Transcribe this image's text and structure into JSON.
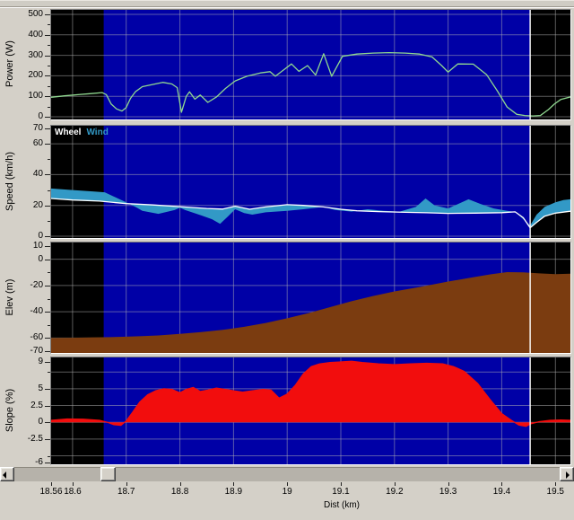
{
  "colors": {
    "window_bg": "#d4d0c8",
    "plot_bg_active": "#0000a6",
    "plot_bg_outside": "#000000",
    "grid": "#b4b4b4",
    "boundary_line": "#ffffff",
    "power_line": "#90d890",
    "wheel_line": "#ffffff",
    "wind_fill": "#3299c6",
    "elev_fill": "#7b3c10",
    "slope_fill": "#f20d0d",
    "text": "#000000"
  },
  "region": {
    "active_start": 18.658,
    "active_end": 19.453
  },
  "x_axis": {
    "label": "Dist (km)",
    "min": 18.56,
    "max": 19.528,
    "ticks": [
      {
        "v": 18.56,
        "label": "18.56"
      },
      {
        "v": 18.6,
        "label": "18.6"
      },
      {
        "v": 18.7,
        "label": "18.7"
      },
      {
        "v": 18.8,
        "label": "18.8"
      },
      {
        "v": 18.9,
        "label": "18.9"
      },
      {
        "v": 19.0,
        "label": "19"
      },
      {
        "v": 19.1,
        "label": "19.1"
      },
      {
        "v": 19.2,
        "label": "19.2"
      },
      {
        "v": 19.3,
        "label": "19.3"
      },
      {
        "v": 19.4,
        "label": "19.4"
      },
      {
        "v": 19.5,
        "label": "19.5"
      }
    ],
    "gridlines": [
      18.6,
      18.7,
      18.8,
      18.9,
      19.0,
      19.1,
      19.2,
      19.3,
      19.4,
      19.5
    ]
  },
  "scrollbar": {
    "thumb_pos": 112,
    "thumb_width": 17
  },
  "chart_data": [
    {
      "id": "power",
      "type": "line",
      "ylabel": "Power (W)",
      "ylim": [
        0,
        500
      ],
      "yticks": [
        {
          "v": 500,
          "label": "500"
        },
        {
          "v": 400,
          "label": "400"
        },
        {
          "v": 300,
          "label": "300"
        },
        {
          "v": 200,
          "label": "200"
        },
        {
          "v": 100,
          "label": "100"
        },
        {
          "v": 0,
          "label": "0"
        }
      ],
      "yticks_minor": [
        450,
        350,
        250,
        150,
        50
      ],
      "ygrid": [
        0,
        100,
        200,
        300,
        400,
        500
      ],
      "series": [
        {
          "name": "Power",
          "type": "line",
          "color": "#90d890",
          "width": 1.3,
          "points": [
            [
              18.56,
              95
            ],
            [
              18.585,
              102
            ],
            [
              18.61,
              108
            ],
            [
              18.635,
              113
            ],
            [
              18.655,
              118
            ],
            [
              18.663,
              108
            ],
            [
              18.672,
              62
            ],
            [
              18.682,
              38
            ],
            [
              18.692,
              28
            ],
            [
              18.7,
              45
            ],
            [
              18.708,
              90
            ],
            [
              18.717,
              122
            ],
            [
              18.73,
              147
            ],
            [
              18.75,
              158
            ],
            [
              18.768,
              168
            ],
            [
              18.785,
              160
            ],
            [
              18.795,
              142
            ],
            [
              18.803,
              22
            ],
            [
              18.812,
              100
            ],
            [
              18.818,
              122
            ],
            [
              18.828,
              86
            ],
            [
              18.838,
              106
            ],
            [
              18.852,
              70
            ],
            [
              18.868,
              96
            ],
            [
              18.885,
              138
            ],
            [
              18.903,
              175
            ],
            [
              18.925,
              198
            ],
            [
              18.95,
              214
            ],
            [
              18.968,
              220
            ],
            [
              18.978,
              198
            ],
            [
              18.995,
              232
            ],
            [
              19.008,
              258
            ],
            [
              19.022,
              222
            ],
            [
              19.038,
              250
            ],
            [
              19.053,
              204
            ],
            [
              19.068,
              308
            ],
            [
              19.083,
              198
            ],
            [
              19.103,
              295
            ],
            [
              19.13,
              306
            ],
            [
              19.16,
              311
            ],
            [
              19.19,
              313
            ],
            [
              19.22,
              311
            ],
            [
              19.247,
              306
            ],
            [
              19.27,
              292
            ],
            [
              19.288,
              250
            ],
            [
              19.3,
              218
            ],
            [
              19.318,
              258
            ],
            [
              19.347,
              257
            ],
            [
              19.372,
              205
            ],
            [
              19.392,
              125
            ],
            [
              19.41,
              48
            ],
            [
              19.428,
              12
            ],
            [
              19.443,
              6
            ],
            [
              19.458,
              4
            ],
            [
              19.472,
              6
            ],
            [
              19.487,
              35
            ],
            [
              19.498,
              62
            ],
            [
              19.51,
              84
            ],
            [
              19.528,
              97
            ]
          ]
        }
      ]
    },
    {
      "id": "speed",
      "type": "line",
      "ylabel": "Speed (km/h)",
      "ylim": [
        0,
        70
      ],
      "yticks": [
        {
          "v": 70,
          "label": "70"
        },
        {
          "v": 60,
          "label": "60"
        },
        {
          "v": 40,
          "label": "40"
        },
        {
          "v": 20,
          "label": "20"
        },
        {
          "v": 0,
          "label": "0"
        }
      ],
      "yticks_minor": [
        50,
        30,
        10
      ],
      "ygrid": [
        0,
        20,
        40,
        60
      ],
      "legend": [
        {
          "label": "Wheel",
          "color": "#ffffff"
        },
        {
          "label": "Wind",
          "color": "#3299c6"
        }
      ],
      "series": [
        {
          "name": "Wind",
          "type": "band",
          "fill": "#3299c6",
          "upper": [
            [
              18.56,
              31
            ],
            [
              18.6,
              30
            ],
            [
              18.64,
              29
            ],
            [
              18.66,
              28.5
            ],
            [
              18.7,
              22
            ],
            [
              18.72,
              18.5
            ],
            [
              18.73,
              16.5
            ],
            [
              18.76,
              14.5
            ],
            [
              18.79,
              17
            ],
            [
              18.8,
              18.5
            ],
            [
              18.81,
              17
            ],
            [
              18.84,
              13.5
            ],
            [
              18.86,
              11
            ],
            [
              18.875,
              8
            ],
            [
              18.89,
              13
            ],
            [
              18.903,
              17.5
            ],
            [
              18.92,
              15
            ],
            [
              18.935,
              14
            ],
            [
              18.96,
              15.5
            ],
            [
              19.0,
              16.5
            ],
            [
              19.03,
              17.5
            ],
            [
              19.067,
              19
            ],
            [
              19.09,
              17
            ],
            [
              19.12,
              16
            ],
            [
              19.15,
              17.5
            ],
            [
              19.18,
              16.5
            ],
            [
              19.21,
              16
            ],
            [
              19.24,
              19
            ],
            [
              19.258,
              24.5
            ],
            [
              19.275,
              20
            ],
            [
              19.3,
              18
            ],
            [
              19.338,
              24
            ],
            [
              19.36,
              21
            ],
            [
              19.385,
              18
            ],
            [
              19.41,
              16.5
            ],
            [
              19.425,
              15.8
            ],
            [
              19.44,
              11
            ],
            [
              19.453,
              7
            ],
            [
              19.465,
              14
            ],
            [
              19.48,
              19
            ],
            [
              19.5,
              22
            ],
            [
              19.515,
              23.5
            ],
            [
              19.528,
              24
            ]
          ],
          "lower_ref": "Wheel"
        },
        {
          "name": "Wheel",
          "type": "line",
          "color": "#ffffff",
          "width": 1.3,
          "points": [
            [
              18.56,
              24.5
            ],
            [
              18.6,
              23.5
            ],
            [
              18.65,
              22.8
            ],
            [
              18.7,
              21.2
            ],
            [
              18.75,
              20.3
            ],
            [
              18.8,
              19.2
            ],
            [
              18.85,
              18
            ],
            [
              18.88,
              17.6
            ],
            [
              18.903,
              19.5
            ],
            [
              18.93,
              17.5
            ],
            [
              18.96,
              19
            ],
            [
              19.0,
              20.5
            ],
            [
              19.03,
              20
            ],
            [
              19.067,
              19
            ],
            [
              19.1,
              17.5
            ],
            [
              19.13,
              16.5
            ],
            [
              19.17,
              16
            ],
            [
              19.22,
              15.5
            ],
            [
              19.26,
              15.2
            ],
            [
              19.3,
              14.8
            ],
            [
              19.35,
              15
            ],
            [
              19.4,
              15.3
            ],
            [
              19.425,
              15.8
            ],
            [
              19.44,
              12
            ],
            [
              19.453,
              5.5
            ],
            [
              19.465,
              9
            ],
            [
              19.48,
              13
            ],
            [
              19.5,
              15
            ],
            [
              19.528,
              16.2
            ]
          ]
        }
      ]
    },
    {
      "id": "elev",
      "type": "area",
      "ylabel": "Elev (m)",
      "ylim": [
        -70,
        10
      ],
      "yticks": [
        {
          "v": 10,
          "label": "10"
        },
        {
          "v": 0,
          "label": "0"
        },
        {
          "v": -20,
          "label": "-20"
        },
        {
          "v": -40,
          "label": "-40"
        },
        {
          "v": -60,
          "label": "-60"
        },
        {
          "v": -70,
          "label": "-70"
        }
      ],
      "yticks_minor": [
        -10,
        -30,
        -50
      ],
      "ygrid": [
        0,
        -20,
        -40,
        -60
      ],
      "series": [
        {
          "name": "Elevation",
          "type": "area",
          "fill": "#7b3c10",
          "baseline": "bottom",
          "points": [
            [
              18.56,
              -60
            ],
            [
              18.6,
              -59.8
            ],
            [
              18.64,
              -59.5
            ],
            [
              18.67,
              -59.3
            ],
            [
              18.7,
              -59
            ],
            [
              18.73,
              -58.5
            ],
            [
              18.76,
              -58
            ],
            [
              18.8,
              -56.8
            ],
            [
              18.84,
              -55.5
            ],
            [
              18.88,
              -53.8
            ],
            [
              18.92,
              -51.5
            ],
            [
              18.96,
              -48.5
            ],
            [
              19.0,
              -45
            ],
            [
              19.04,
              -41
            ],
            [
              19.08,
              -36.5
            ],
            [
              19.12,
              -32
            ],
            [
              19.16,
              -28
            ],
            [
              19.2,
              -24.5
            ],
            [
              19.25,
              -21
            ],
            [
              19.3,
              -17
            ],
            [
              19.35,
              -13.5
            ],
            [
              19.38,
              -11.5
            ],
            [
              19.41,
              -9.8
            ],
            [
              19.44,
              -10
            ],
            [
              19.47,
              -10.8
            ],
            [
              19.5,
              -11.3
            ],
            [
              19.528,
              -11
            ]
          ]
        }
      ]
    },
    {
      "id": "slope",
      "type": "area",
      "ylabel": "Slope (%)",
      "ylim": [
        -6,
        9
      ],
      "yticks": [
        {
          "v": 9,
          "label": "9"
        },
        {
          "v": 5,
          "label": "5"
        },
        {
          "v": 2.5,
          "label": "2.5"
        },
        {
          "v": 0,
          "label": "0"
        },
        {
          "v": -2.5,
          "label": "-2.5"
        },
        {
          "v": -6,
          "label": "-6"
        }
      ],
      "yticks_minor": [
        7.5,
        -5
      ],
      "ygrid": [
        7.5,
        5,
        2.5,
        0,
        -2.5,
        -5
      ],
      "series": [
        {
          "name": "Slope",
          "type": "area",
          "fill": "#f20d0d",
          "baseline": 0,
          "stroke": "#f20d0d",
          "width": 1.3,
          "points": [
            [
              18.56,
              0.3
            ],
            [
              18.59,
              0.5
            ],
            [
              18.62,
              0.45
            ],
            [
              18.65,
              0.3
            ],
            [
              18.665,
              0
            ],
            [
              18.677,
              -0.35
            ],
            [
              18.69,
              -0.45
            ],
            [
              18.7,
              0.2
            ],
            [
              18.712,
              1.5
            ],
            [
              18.725,
              3
            ],
            [
              18.74,
              4.1
            ],
            [
              18.755,
              4.7
            ],
            [
              18.77,
              5
            ],
            [
              18.785,
              4.9
            ],
            [
              18.8,
              4.4
            ],
            [
              18.812,
              4.9
            ],
            [
              18.825,
              5.2
            ],
            [
              18.838,
              4.6
            ],
            [
              18.852,
              4.8
            ],
            [
              18.868,
              5.1
            ],
            [
              18.885,
              4.9
            ],
            [
              18.9,
              4.7
            ],
            [
              18.917,
              4.5
            ],
            [
              18.935,
              4.7
            ],
            [
              18.955,
              4.9
            ],
            [
              18.97,
              4.8
            ],
            [
              18.985,
              3.6
            ],
            [
              19.0,
              4.2
            ],
            [
              19.015,
              5.5
            ],
            [
              19.03,
              7.2
            ],
            [
              19.045,
              8.3
            ],
            [
              19.06,
              8.7
            ],
            [
              19.08,
              8.9
            ],
            [
              19.1,
              9
            ],
            [
              19.12,
              9.1
            ],
            [
              19.14,
              8.9
            ],
            [
              19.17,
              8.7
            ],
            [
              19.2,
              8.6
            ],
            [
              19.23,
              8.7
            ],
            [
              19.26,
              8.8
            ],
            [
              19.29,
              8.7
            ],
            [
              19.31,
              8.3
            ],
            [
              19.33,
              7.6
            ],
            [
              19.355,
              5.8
            ],
            [
              19.378,
              3.4
            ],
            [
              19.4,
              1.3
            ],
            [
              19.418,
              0.3
            ],
            [
              19.432,
              -0.4
            ],
            [
              19.445,
              -0.6
            ],
            [
              19.455,
              -0.2
            ],
            [
              19.47,
              0.1
            ],
            [
              19.49,
              0.3
            ],
            [
              19.51,
              0.35
            ],
            [
              19.528,
              0.3
            ]
          ]
        }
      ]
    }
  ]
}
